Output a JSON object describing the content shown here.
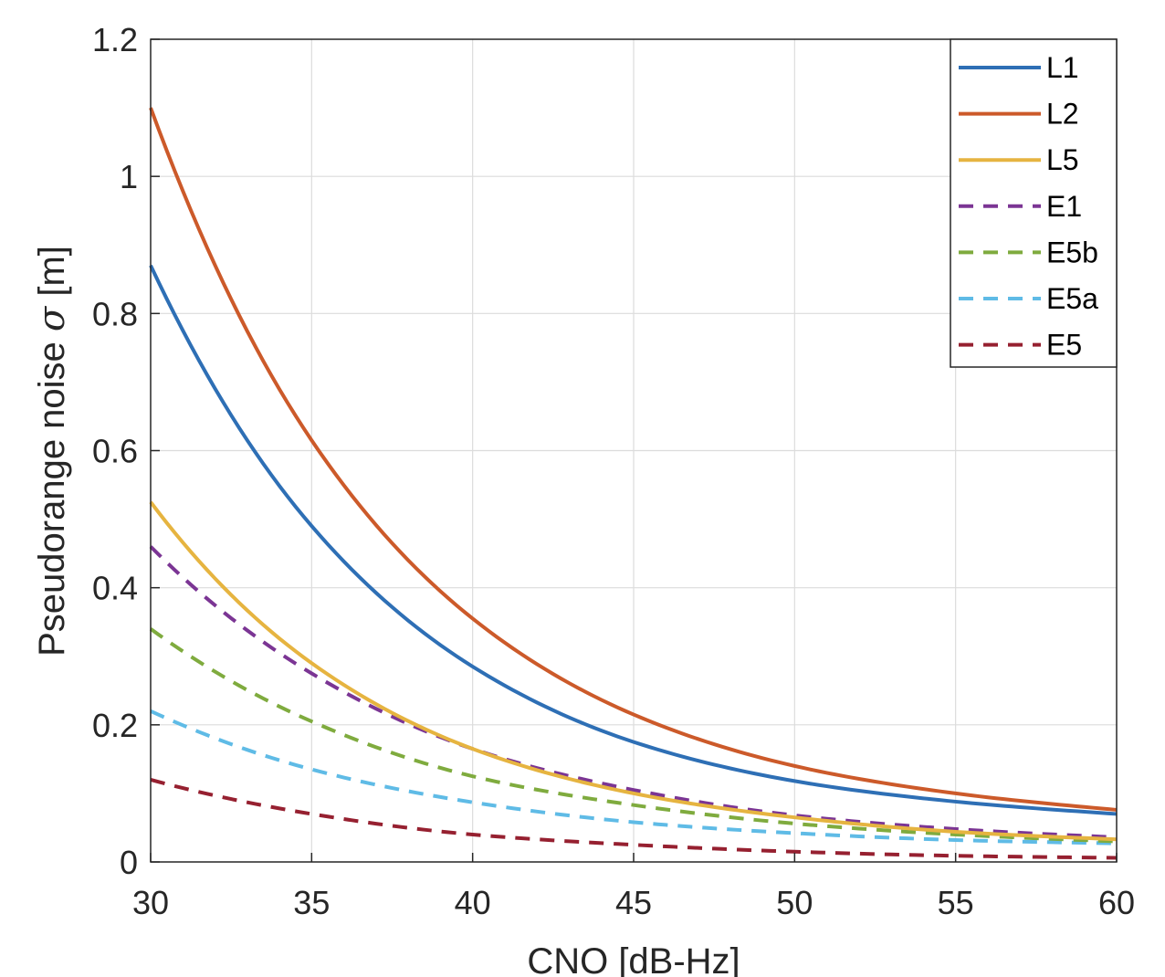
{
  "chart_data": {
    "type": "line",
    "xlabel": "CNO [dB-Hz]",
    "ylabel_prefix": "Pseudorange noise ",
    "ylabel_symbol": "σ",
    "ylabel_suffix": " [m]",
    "xlim": [
      30,
      60
    ],
    "ylim": [
      0,
      1.2
    ],
    "x_ticks": [
      30,
      35,
      40,
      45,
      50,
      55,
      60
    ],
    "y_ticks": [
      0,
      0.2,
      0.4,
      0.6,
      0.8,
      1,
      1.2
    ],
    "x_tick_labels": [
      "30",
      "35",
      "40",
      "45",
      "50",
      "55",
      "60"
    ],
    "y_tick_labels": [
      "0",
      "0.2",
      "0.4",
      "0.6",
      "0.8",
      "1",
      "1.2"
    ],
    "grid": true,
    "legend_position": "top-right",
    "x": [
      30,
      35,
      40,
      45,
      50,
      55,
      60
    ],
    "series": [
      {
        "name": "L1",
        "color": "#2e6fb5",
        "dash": "solid",
        "values": [
          0.87,
          0.49,
          0.285,
          0.175,
          0.118,
          0.088,
          0.07
        ]
      },
      {
        "name": "L2",
        "color": "#cc5a2a",
        "dash": "solid",
        "values": [
          1.1,
          0.615,
          0.355,
          0.215,
          0.14,
          0.1,
          0.076
        ]
      },
      {
        "name": "L5",
        "color": "#e6b440",
        "dash": "solid",
        "values": [
          0.525,
          0.29,
          0.165,
          0.1,
          0.065,
          0.044,
          0.033
        ]
      },
      {
        "name": "E1",
        "color": "#7b3594",
        "dash": "dashed",
        "values": [
          0.46,
          0.275,
          0.165,
          0.105,
          0.068,
          0.048,
          0.036
        ]
      },
      {
        "name": "E5b",
        "color": "#7fab3e",
        "dash": "dashed",
        "values": [
          0.34,
          0.205,
          0.125,
          0.083,
          0.056,
          0.04,
          0.03
        ]
      },
      {
        "name": "E5a",
        "color": "#5fbbe6",
        "dash": "dashed",
        "values": [
          0.22,
          0.135,
          0.087,
          0.058,
          0.042,
          0.032,
          0.027
        ]
      },
      {
        "name": "E5",
        "color": "#962030",
        "dash": "dashed",
        "values": [
          0.12,
          0.07,
          0.04,
          0.025,
          0.015,
          0.009,
          0.006
        ]
      }
    ]
  }
}
